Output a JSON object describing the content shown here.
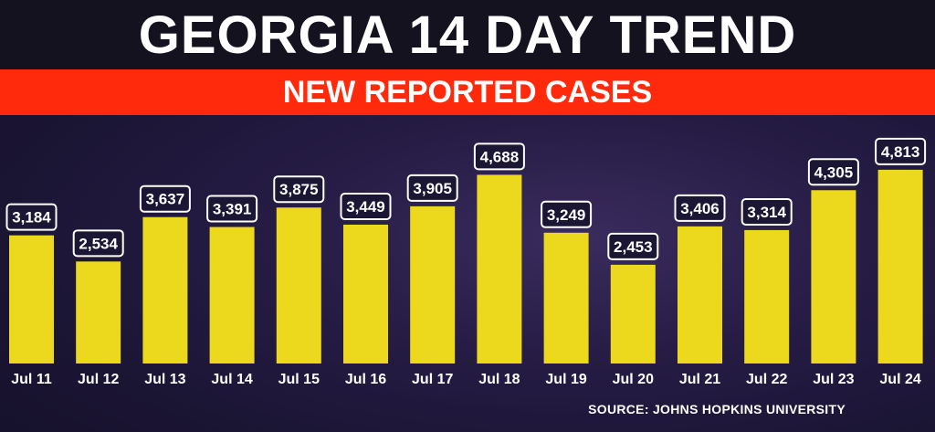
{
  "chart_data": {
    "type": "bar",
    "title": "GEORGIA 14 DAY TREND",
    "subtitle": "NEW REPORTED CASES",
    "categories": [
      "Jul 11",
      "Jul 12",
      "Jul 13",
      "Jul 14",
      "Jul 15",
      "Jul 16",
      "Jul 17",
      "Jul 18",
      "Jul 19",
      "Jul 20",
      "Jul 21",
      "Jul 22",
      "Jul 23",
      "Jul 24"
    ],
    "values": [
      3184,
      2534,
      3637,
      3391,
      3875,
      3449,
      3905,
      4688,
      3249,
      2453,
      3406,
      3314,
      4305,
      4813
    ],
    "value_labels": [
      "3,184",
      "2,534",
      "3,637",
      "3,391",
      "3,875",
      "3,449",
      "3,905",
      "4,688",
      "3,249",
      "2,453",
      "3,406",
      "3,314",
      "4,305",
      "4,813"
    ],
    "ylim": [
      0,
      5400
    ],
    "grid": false,
    "legend": "none",
    "xlabel": "",
    "ylabel": "",
    "source": "SOURCE: JOHNS HOPKINS UNIVERSITY"
  },
  "colors": {
    "bar": "#ecd81c",
    "subtitle_band": "#ff2a0c",
    "background": "#1b1534"
  }
}
